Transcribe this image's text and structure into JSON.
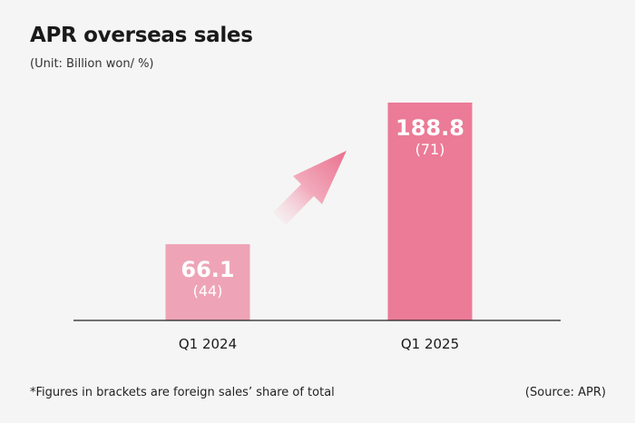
{
  "chart_data": {
    "type": "bar",
    "title": "APR overseas sales",
    "subtitle": "(Unit: Billion won/ %)",
    "categories": [
      "Q1 2024",
      "Q1 2025"
    ],
    "values": [
      66.1,
      188.8
    ],
    "value_labels": [
      "66.1",
      "188.8"
    ],
    "share_labels": [
      "(44)",
      "(71)"
    ],
    "colors": [
      "#eea4b6",
      "#eb7b97"
    ],
    "ylim": [
      0,
      188.8
    ],
    "grid": false,
    "annotation": "upward-arrow"
  },
  "footnote": "*Figures in brackets are foreign sales’ share of total",
  "source": "(Source: APR)"
}
